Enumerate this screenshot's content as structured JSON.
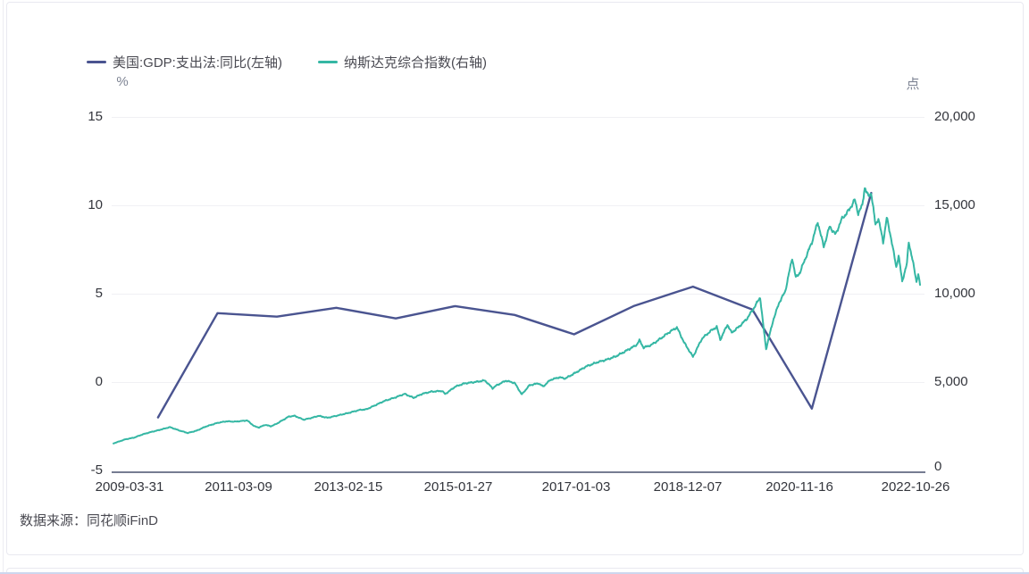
{
  "page": {
    "source_label": "数据来源：",
    "source_value": "同花顺iFinD"
  },
  "colors": {
    "gdp_line": "#4a5490",
    "nasdaq_line": "#35b7a4",
    "grid": "#f0f0f4",
    "axis_line": "#767c92"
  },
  "chart_data": {
    "type": "line",
    "title": "",
    "legend_position": "top-left",
    "grid": true,
    "left_axis": {
      "unit": "%",
      "range": [
        -5,
        15
      ],
      "tick_labels": [
        "15",
        "10",
        "5",
        "0",
        "-5"
      ]
    },
    "right_axis": {
      "unit": "点",
      "range": [
        0,
        20000
      ],
      "tick_labels": [
        "20,000",
        "15,000",
        "10,000",
        "5,000",
        "0"
      ]
    },
    "x_axis": {
      "range_years": [
        2009.25,
        2022.82
      ],
      "tick_labels": [
        "2009-03-31",
        "2011-03-09",
        "2013-02-15",
        "2015-01-27",
        "2017-01-03",
        "2018-12-07",
        "2020-11-16",
        "2022-10-26"
      ]
    },
    "series": [
      {
        "name": "美国:GDP:支出法:同比(左轴)",
        "axis": "left",
        "color": "#4a5490",
        "years": [
          2009,
          2010,
          2011,
          2012,
          2013,
          2014,
          2015,
          2016,
          2017,
          2018,
          2019,
          2020,
          2021
        ],
        "values": [
          -2.0,
          3.9,
          3.7,
          4.2,
          3.6,
          4.3,
          3.8,
          2.7,
          4.3,
          5.4,
          4.1,
          -1.5,
          10.7
        ]
      },
      {
        "name": "纳斯达克综合指数(右轴)",
        "axis": "right",
        "color": "#35b7a4",
        "anchors": [
          [
            2009.25,
            1530
          ],
          [
            2009.45,
            1760
          ],
          [
            2009.6,
            1860
          ],
          [
            2009.75,
            2050
          ],
          [
            2009.9,
            2190
          ],
          [
            2010.0,
            2270
          ],
          [
            2010.1,
            2360
          ],
          [
            2010.2,
            2450
          ],
          [
            2010.35,
            2270
          ],
          [
            2010.5,
            2120
          ],
          [
            2010.65,
            2250
          ],
          [
            2010.8,
            2480
          ],
          [
            2011.0,
            2690
          ],
          [
            2011.15,
            2780
          ],
          [
            2011.3,
            2760
          ],
          [
            2011.5,
            2830
          ],
          [
            2011.62,
            2500
          ],
          [
            2011.7,
            2430
          ],
          [
            2011.8,
            2580
          ],
          [
            2011.9,
            2500
          ],
          [
            2012.0,
            2650
          ],
          [
            2012.2,
            3050
          ],
          [
            2012.3,
            3090
          ],
          [
            2012.45,
            2870
          ],
          [
            2012.6,
            2990
          ],
          [
            2012.7,
            3090
          ],
          [
            2012.85,
            2980
          ],
          [
            2013.0,
            3090
          ],
          [
            2013.2,
            3250
          ],
          [
            2013.4,
            3430
          ],
          [
            2013.5,
            3450
          ],
          [
            2013.65,
            3680
          ],
          [
            2013.8,
            3920
          ],
          [
            2014.0,
            4140
          ],
          [
            2014.15,
            4330
          ],
          [
            2014.3,
            4110
          ],
          [
            2014.45,
            4340
          ],
          [
            2014.6,
            4460
          ],
          [
            2014.78,
            4500
          ],
          [
            2014.83,
            4320
          ],
          [
            2015.0,
            4740
          ],
          [
            2015.15,
            4920
          ],
          [
            2015.35,
            5010
          ],
          [
            2015.5,
            5090
          ],
          [
            2015.63,
            4650
          ],
          [
            2015.7,
            4820
          ],
          [
            2015.85,
            5080
          ],
          [
            2016.0,
            4950
          ],
          [
            2016.12,
            4300
          ],
          [
            2016.25,
            4820
          ],
          [
            2016.4,
            4930
          ],
          [
            2016.48,
            4750
          ],
          [
            2016.6,
            5120
          ],
          [
            2016.75,
            5270
          ],
          [
            2016.85,
            5200
          ],
          [
            2017.0,
            5480
          ],
          [
            2017.2,
            5880
          ],
          [
            2017.4,
            6130
          ],
          [
            2017.55,
            6270
          ],
          [
            2017.7,
            6450
          ],
          [
            2017.85,
            6720
          ],
          [
            2018.05,
            7100
          ],
          [
            2018.1,
            7360
          ],
          [
            2018.17,
            6950
          ],
          [
            2018.3,
            7100
          ],
          [
            2018.45,
            7450
          ],
          [
            2018.6,
            7820
          ],
          [
            2018.73,
            8090
          ],
          [
            2018.85,
            7250
          ],
          [
            2018.95,
            6700
          ],
          [
            2019.0,
            6430
          ],
          [
            2019.15,
            7450
          ],
          [
            2019.3,
            7900
          ],
          [
            2019.4,
            8120
          ],
          [
            2019.46,
            7400
          ],
          [
            2019.58,
            8250
          ],
          [
            2019.65,
            7790
          ],
          [
            2019.78,
            8150
          ],
          [
            2019.9,
            8550
          ],
          [
            2020.0,
            9050
          ],
          [
            2020.13,
            9790
          ],
          [
            2020.18,
            8300
          ],
          [
            2020.23,
            6880
          ],
          [
            2020.35,
            8500
          ],
          [
            2020.45,
            9500
          ],
          [
            2020.55,
            10100
          ],
          [
            2020.67,
            12020
          ],
          [
            2020.73,
            10900
          ],
          [
            2020.8,
            11200
          ],
          [
            2020.88,
            11900
          ],
          [
            2021.0,
            12900
          ],
          [
            2021.1,
            14050
          ],
          [
            2021.2,
            12650
          ],
          [
            2021.3,
            13800
          ],
          [
            2021.4,
            13350
          ],
          [
            2021.5,
            14200
          ],
          [
            2021.63,
            14750
          ],
          [
            2021.72,
            15320
          ],
          [
            2021.78,
            14550
          ],
          [
            2021.85,
            15000
          ],
          [
            2021.89,
            16020
          ],
          [
            2021.95,
            15500
          ],
          [
            2022.0,
            15700
          ],
          [
            2022.07,
            13900
          ],
          [
            2022.12,
            14250
          ],
          [
            2022.2,
            12900
          ],
          [
            2022.26,
            14300
          ],
          [
            2022.33,
            13200
          ],
          [
            2022.42,
            11500
          ],
          [
            2022.46,
            12150
          ],
          [
            2022.52,
            10700
          ],
          [
            2022.6,
            11700
          ],
          [
            2022.63,
            12950
          ],
          [
            2022.7,
            11800
          ],
          [
            2022.76,
            10700
          ],
          [
            2022.79,
            11100
          ],
          [
            2022.82,
            10500
          ]
        ]
      }
    ]
  }
}
